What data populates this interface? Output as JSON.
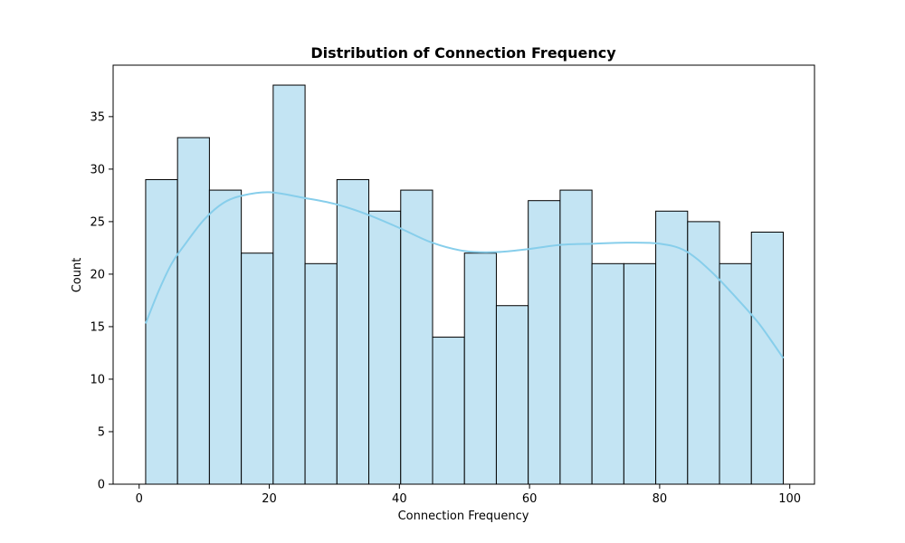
{
  "chart_data": {
    "type": "bar",
    "title": "Distribution of Connection Frequency",
    "xlabel": "Connection Frequency",
    "ylabel": "Count",
    "xlim": [
      -4.0,
      103.8
    ],
    "ylim": [
      0,
      39.9
    ],
    "xticks": [
      0,
      20,
      40,
      60,
      80,
      100
    ],
    "yticks": [
      0,
      5,
      10,
      15,
      20,
      25,
      30,
      35
    ],
    "grid": false,
    "bins": {
      "start": 1.0,
      "width": 4.9,
      "counts": [
        29,
        33,
        28,
        22,
        38,
        21,
        29,
        26,
        28,
        14,
        22,
        17,
        27,
        28,
        21,
        21,
        26,
        25,
        21,
        24
      ]
    },
    "kde": {
      "x": [
        1,
        3,
        5,
        7,
        10,
        13,
        16,
        20,
        25,
        30,
        35,
        40,
        45,
        50,
        55,
        60,
        65,
        70,
        75,
        80,
        84,
        88,
        92,
        95,
        97,
        99
      ],
      "y": [
        15.3,
        18.4,
        21.0,
        22.8,
        25.2,
        26.8,
        27.5,
        27.8,
        27.3,
        26.7,
        25.7,
        24.4,
        23.0,
        22.2,
        22.1,
        22.4,
        22.8,
        22.9,
        23.0,
        22.9,
        22.2,
        20.2,
        17.6,
        15.5,
        13.8,
        12.0
      ]
    },
    "colors": {
      "bar_fill": "#c3e4f3",
      "bar_edge": "#000000",
      "kde_line": "#87ceeb",
      "axes": "#000000"
    }
  }
}
